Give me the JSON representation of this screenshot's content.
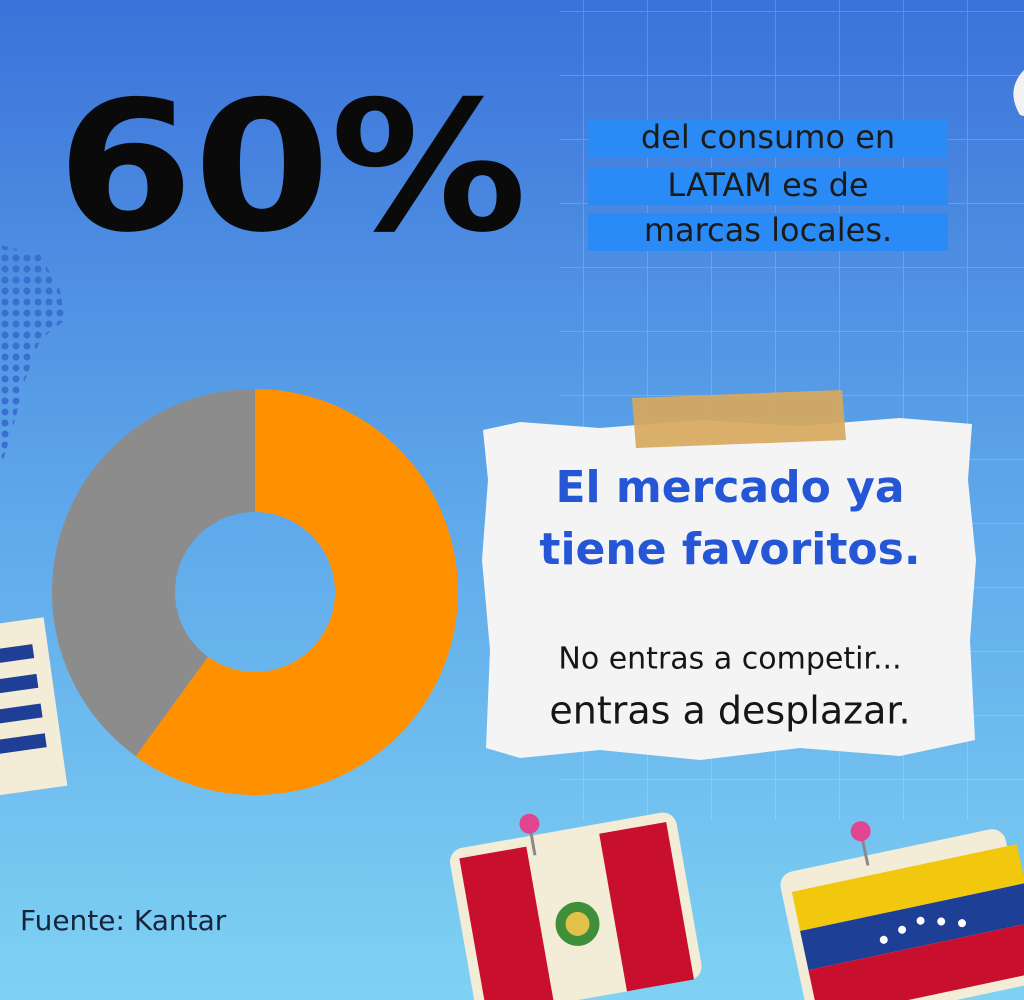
{
  "headline": {
    "stat": "60%",
    "lines": [
      "del consumo en",
      "LATAM es de",
      "marcas locales."
    ]
  },
  "note": {
    "title_lines": [
      "El mercado ya",
      "tiene favoritos."
    ],
    "body_lines": [
      "No entras a competir...",
      "entras a desplazar."
    ]
  },
  "source": "Fuente: Kantar",
  "chart_data": {
    "type": "donut",
    "values": [
      60,
      40
    ],
    "colors": [
      "#ff9100",
      "#8c8c8c"
    ]
  }
}
